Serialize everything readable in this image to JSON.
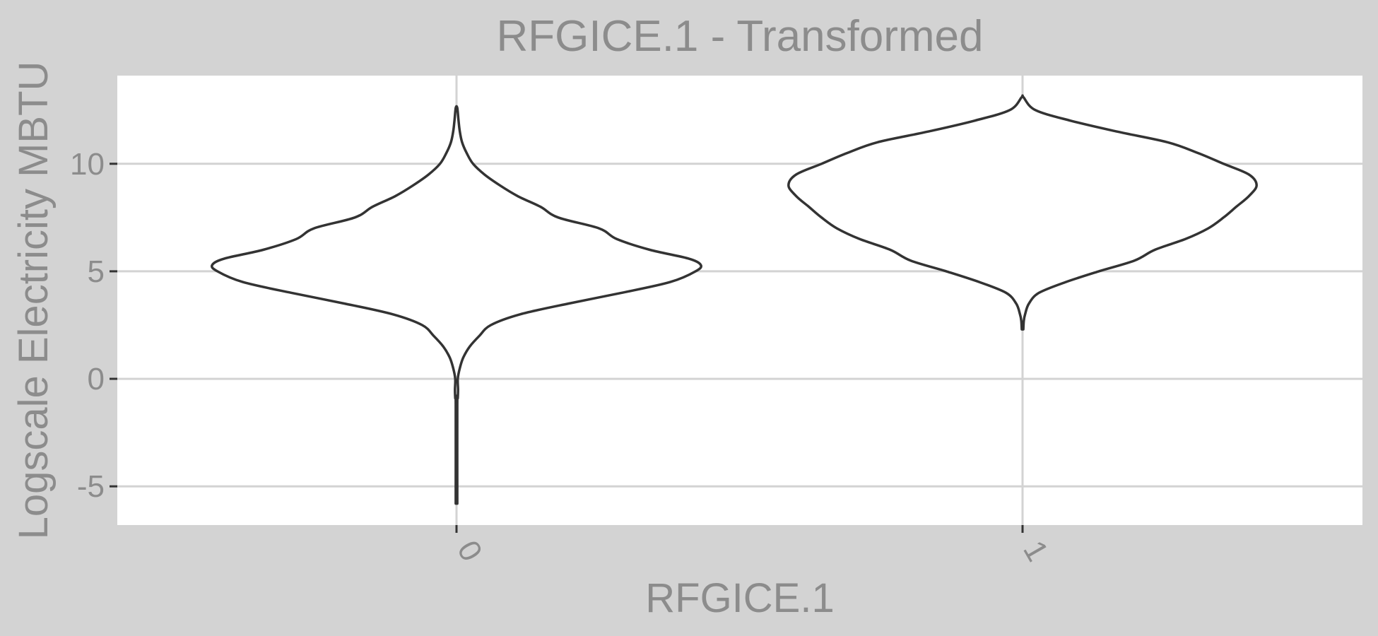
{
  "chart_data": {
    "type": "violin",
    "title": "RFGICE.1 - Transformed",
    "xlabel": "RFGICE.1",
    "ylabel": "Logscale Electricity MBTU",
    "categories": [
      "0",
      "1"
    ],
    "y_ticks": [
      "-5",
      "0",
      "5",
      "10"
    ],
    "y_tick_values": [
      -5,
      0,
      5,
      10
    ],
    "ylim": [
      -6.8,
      14.1
    ],
    "grid": true,
    "colors": {
      "outer_background": "#d3d3d3",
      "panel_background": "#ffffff",
      "gridline": "#d3d3d3",
      "outline": "#333333",
      "text": "#8c8c8c"
    },
    "violins": [
      {
        "category": "0",
        "y_min": -5.8,
        "y_max": 12.6,
        "profile": [
          [
            -5.8,
            0.003
          ],
          [
            -1.2,
            0.003
          ],
          [
            -0.9,
            0.005
          ],
          [
            -0.5,
            0.006
          ],
          [
            0,
            0.005
          ],
          [
            0.5,
            0.013
          ],
          [
            1,
            0.027
          ],
          [
            1.5,
            0.052
          ],
          [
            2,
            0.09
          ],
          [
            2.5,
            0.135
          ],
          [
            3,
            0.25
          ],
          [
            3.5,
            0.44
          ],
          [
            4,
            0.65
          ],
          [
            4.5,
            0.84
          ],
          [
            5,
            0.94
          ],
          [
            5.3,
            0.96
          ],
          [
            5.6,
            0.91
          ],
          [
            6,
            0.76
          ],
          [
            6.5,
            0.63
          ],
          [
            7,
            0.56
          ],
          [
            7.5,
            0.4
          ],
          [
            8,
            0.33
          ],
          [
            8.5,
            0.24
          ],
          [
            9,
            0.17
          ],
          [
            9.5,
            0.11
          ],
          [
            10,
            0.065
          ],
          [
            10.5,
            0.04
          ],
          [
            11,
            0.022
          ],
          [
            11.5,
            0.013
          ],
          [
            12,
            0.008
          ],
          [
            12.6,
            0.003
          ]
        ]
      },
      {
        "category": "1",
        "y_min": 2.3,
        "y_max": 13.1,
        "profile": [
          [
            2.3,
            0.003
          ],
          [
            2.7,
            0.005
          ],
          [
            3,
            0.01
          ],
          [
            3.5,
            0.025
          ],
          [
            4,
            0.065
          ],
          [
            4.5,
            0.17
          ],
          [
            5,
            0.3
          ],
          [
            5.5,
            0.44
          ],
          [
            6,
            0.52
          ],
          [
            6.5,
            0.64
          ],
          [
            7,
            0.73
          ],
          [
            7.5,
            0.79
          ],
          [
            8,
            0.84
          ],
          [
            8.5,
            0.89
          ],
          [
            9,
            0.92
          ],
          [
            9.5,
            0.89
          ],
          [
            10,
            0.79
          ],
          [
            10.5,
            0.69
          ],
          [
            11,
            0.57
          ],
          [
            11.5,
            0.37
          ],
          [
            12,
            0.19
          ],
          [
            12.5,
            0.05
          ],
          [
            13.1,
            0.003
          ]
        ]
      }
    ]
  }
}
